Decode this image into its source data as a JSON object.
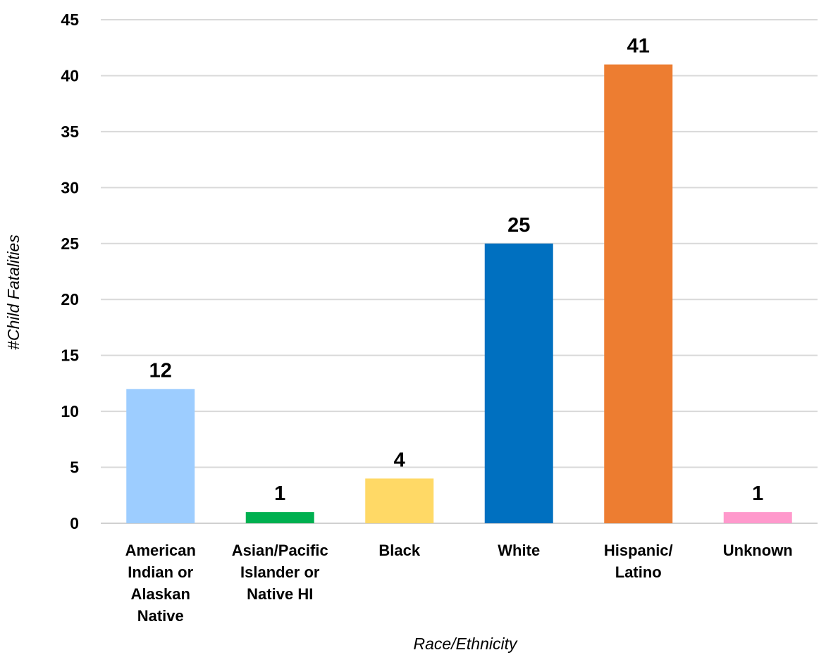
{
  "chart_data": {
    "type": "bar",
    "title": "",
    "xlabel": "Race/Ethnicity",
    "ylabel": "#Child Fatalities",
    "ylim": [
      0,
      45
    ],
    "yticks": [
      0,
      5,
      10,
      15,
      20,
      25,
      30,
      35,
      40,
      45
    ],
    "grid": true,
    "legend": "none",
    "categories": [
      "American Indian or Alaskan Native",
      "Asian/Pacific Islander or Native HI",
      "Black",
      "White",
      "Hispanic/ Latino",
      "Unknown"
    ],
    "category_label_lines": [
      [
        "American",
        "Indian or",
        "Alaskan",
        "Native"
      ],
      [
        "Asian/Pacific",
        "Islander or",
        "Native HI"
      ],
      [
        "Black"
      ],
      [
        "White"
      ],
      [
        "Hispanic/",
        "Latino"
      ],
      [
        "Unknown"
      ]
    ],
    "values": [
      12,
      1,
      4,
      25,
      41,
      1
    ],
    "colors": [
      "#9dcdff",
      "#00b050",
      "#ffd966",
      "#0070c0",
      "#ed7d31",
      "#ff99cc"
    ]
  }
}
